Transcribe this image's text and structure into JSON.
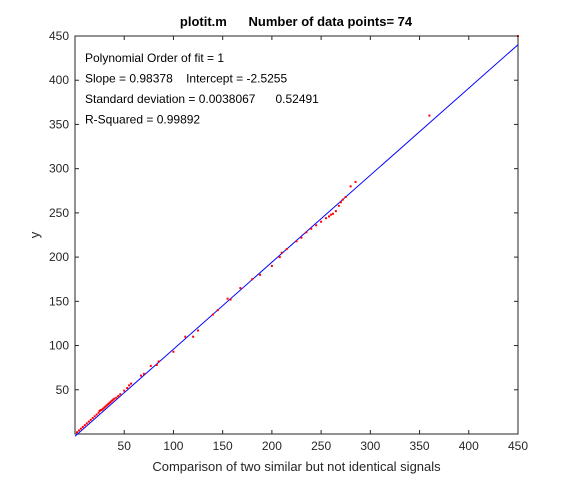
{
  "chart_data": {
    "type": "scatter",
    "title": "plotit.m      Number of data points= 74",
    "xlabel": "Comparison of two similar but not identical signals",
    "ylabel": "y",
    "xlim": [
      0,
      450
    ],
    "ylim": [
      0,
      450
    ],
    "xticks": [
      50,
      100,
      150,
      200,
      250,
      300,
      350,
      400,
      450
    ],
    "yticks": [
      50,
      100,
      150,
      200,
      250,
      300,
      350,
      400,
      450
    ],
    "grid": false,
    "annotations": [
      "Polynomial Order of fit = 1",
      "Slope = 0.98378    Intercept = -2.5255",
      "Standard deviation = 0.0038067      0.52491",
      "R-Squared = 0.99892"
    ],
    "fit": {
      "slope": 0.98378,
      "intercept": -2.5255,
      "color": "#0000ff"
    },
    "point_color": "#ff0000",
    "x": [
      2,
      4,
      6,
      8,
      10,
      12,
      14,
      16,
      18,
      20,
      22,
      24,
      25,
      26,
      27,
      28,
      29,
      30,
      31,
      32,
      33,
      34,
      35,
      36,
      37,
      38,
      39,
      40,
      42,
      44,
      46,
      50,
      53,
      55,
      57,
      67,
      70,
      77,
      83,
      85,
      100,
      112,
      120,
      125,
      140,
      145,
      155,
      158,
      168,
      180,
      188,
      200,
      208,
      210,
      215,
      225,
      230,
      235,
      240,
      245,
      250,
      255,
      258,
      260,
      262,
      265,
      268,
      270,
      272,
      275,
      280,
      285,
      360,
      450
    ],
    "y": [
      2,
      4,
      6,
      8,
      10,
      12,
      14,
      16,
      18,
      20,
      22,
      24,
      26,
      27,
      27,
      28,
      29,
      30,
      31,
      32,
      33,
      34,
      35,
      36,
      37,
      38,
      39,
      40,
      41,
      43,
      45,
      49,
      52,
      55,
      57,
      66,
      68,
      77,
      78,
      82,
      93,
      110,
      110,
      117,
      135,
      140,
      153,
      152,
      165,
      175,
      180,
      190,
      200,
      205,
      209,
      218,
      222,
      228,
      232,
      236,
      240,
      244,
      246,
      248,
      249,
      252,
      258,
      262,
      265,
      268,
      280,
      285,
      360,
      450
    ]
  }
}
